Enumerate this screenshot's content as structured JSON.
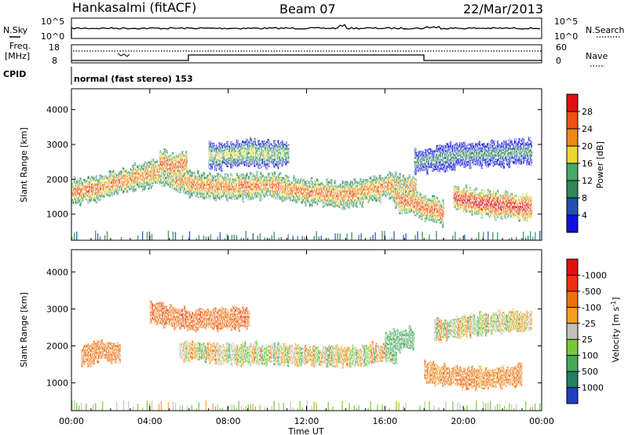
{
  "header": {
    "station": "Hankasalmi (fitACF)",
    "beam": "Beam 07",
    "date": "22/Mar/2013"
  },
  "noise_panel": {
    "left_label": "N.Sky",
    "right_label": "N.Search",
    "left_ticks": [
      "10^5",
      "10^0"
    ],
    "right_ticks": [
      "10^5",
      "10^0"
    ]
  },
  "freq_panel": {
    "left_label_1": "Freq.",
    "left_label_2": "[MHz]",
    "right_label": "Nave",
    "left_ticks": [
      "18",
      "8"
    ],
    "right_ticks": [
      "60",
      "0"
    ]
  },
  "cpid": {
    "label": "CPID",
    "program": "normal (fast stereo) 153"
  },
  "chart_data": [
    {
      "type": "heatmap",
      "title": "",
      "xlabel": "",
      "ylabel": "Slant Range [km]",
      "x_ticks": [
        "00:00",
        "04:00",
        "08:00",
        "12:00",
        "16:00",
        "20:00",
        "00:00"
      ],
      "y_ticks": [
        1000,
        2000,
        3000,
        4000
      ],
      "ylim": [
        250,
        4600
      ],
      "xlim_hours": [
        0,
        24
      ],
      "colorbar": {
        "label": "Power [dB]",
        "ticks": [
          4,
          8,
          12,
          16,
          20,
          24,
          28
        ],
        "colors": [
          "#1010e0",
          "#2050b0",
          "#308858",
          "#48a868",
          "#e8d830",
          "#f08818",
          "#f05010",
          "#e01010"
        ]
      },
      "bands": [
        {
          "t": [
            0.0,
            1.5,
            3.5,
            4.5,
            6.0,
            8.0,
            10.0,
            12.0,
            14.0,
            16.0,
            17.5
          ],
          "range": [
            1650,
            1750,
            2100,
            2200,
            1850,
            1750,
            1850,
            1600,
            1550,
            1800,
            1700
          ],
          "level": 24
        },
        {
          "t": [
            4.5,
            5.2,
            5.8
          ],
          "range": [
            2450,
            2350,
            2500
          ],
          "level": 26
        },
        {
          "t": [
            16.5,
            18.0,
            19.0
          ],
          "range": [
            1500,
            1200,
            1000
          ],
          "level": 26
        },
        {
          "t": [
            19.5,
            21.0,
            22.5,
            23.5
          ],
          "range": [
            1450,
            1300,
            1200,
            1150
          ],
          "level": 29
        },
        {
          "t": [
            7.0,
            9.0,
            11.0
          ],
          "range": [
            2650,
            2750,
            2700
          ],
          "level": 16
        },
        {
          "t": [
            17.5,
            20.0,
            23.5
          ],
          "range": [
            2500,
            2700,
            2800
          ],
          "level": 10
        }
      ]
    },
    {
      "type": "heatmap",
      "title": "",
      "xlabel": "Time UT",
      "ylabel": "Slant Range [km]",
      "x_ticks": [
        "00:00",
        "04:00",
        "08:00",
        "12:00",
        "16:00",
        "20:00",
        "00:00"
      ],
      "y_ticks": [
        1000,
        2000,
        3000,
        4000
      ],
      "ylim": [
        250,
        4600
      ],
      "xlim_hours": [
        0,
        24
      ],
      "colorbar": {
        "label": "Velocity",
        "units": "[m s",
        "units_superscript": "-1",
        "units_close": "]",
        "ticks": [
          1000,
          500,
          100,
          25,
          -25,
          -100,
          -500,
          -1000
        ],
        "colors": [
          "#2040c0",
          "#208060",
          "#48a858",
          "#78c838",
          "#c0c0b8",
          "#f0a020",
          "#f07010",
          "#f03010",
          "#e01010"
        ]
      },
      "bands": [
        {
          "t": [
            5.5,
            8.0,
            11.0,
            14.0,
            16.5
          ],
          "range": [
            1850,
            1800,
            1750,
            1700,
            1850
          ],
          "velocity": 0
        },
        {
          "t": [
            0.5,
            1.5,
            2.5
          ],
          "range": [
            1700,
            1900,
            1800
          ],
          "velocity": -300
        },
        {
          "t": [
            4.0,
            6.0,
            9.0
          ],
          "range": [
            2900,
            2700,
            2750
          ],
          "velocity": -400
        },
        {
          "t": [
            18.0,
            20.0,
            23.0
          ],
          "range": [
            1300,
            1100,
            1200
          ],
          "velocity": -200
        },
        {
          "t": [
            18.5,
            21.0,
            23.5
          ],
          "range": [
            2400,
            2600,
            2700
          ],
          "velocity": 0
        },
        {
          "t": [
            16.0,
            17.5
          ],
          "range": [
            2100,
            2200
          ],
          "velocity": 300
        }
      ]
    }
  ]
}
